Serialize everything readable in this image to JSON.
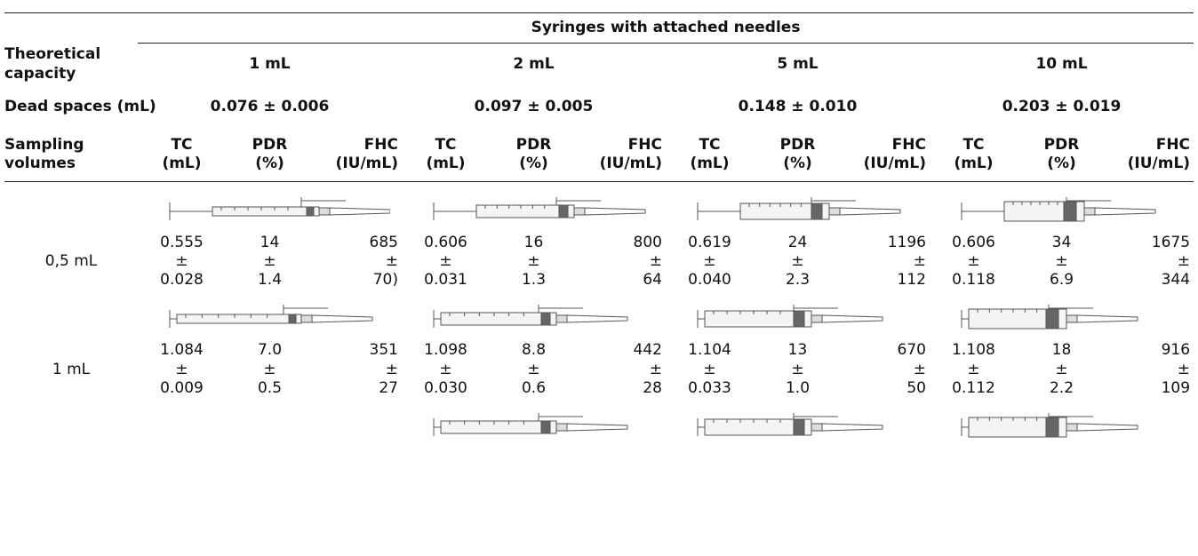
{
  "header": {
    "group": "Syringes with attached needles"
  },
  "capacity": {
    "label": "Theoretical capacity",
    "values": [
      "1 mL",
      "2 mL",
      "5 mL",
      "10 mL"
    ]
  },
  "dead_spaces": {
    "label": "Dead spaces (mL)",
    "values": [
      "0.076 ± 0.006",
      "0.097 ± 0.005",
      "0.148 ± 0.010",
      "0.203 ± 0.019"
    ]
  },
  "sampling": {
    "label": "Sampling volumes",
    "columns": [
      "TC (mL)",
      "PDR (%)",
      "FHC (IU/mL)"
    ]
  },
  "rows": [
    {
      "label": "0,5 mL",
      "cells": [
        "0.555 ± 0.028",
        "14 ± 1.4",
        "685 ± 70)",
        "0.606 ± 0.031",
        "16 ± 1.3",
        "800 ± 64",
        "0.619 ± 0.040",
        "24 ± 2.3",
        "1196 ± 112",
        "0.606 ± 0.118",
        "34 ± 6.9",
        "1675 ± 344"
      ]
    },
    {
      "label": "1 mL",
      "cells": [
        "1.084 ± 0.009",
        "7.0 ± 0.5",
        "351 ± 27",
        "1.098 ± 0.030",
        "8.8 ± 0.6",
        "442 ± 28",
        "1.104 ± 0.033",
        "13 ± 1.0",
        "670 ± 50",
        "1.108 ± 0.112",
        "18 ± 2.2",
        "916 ± 109"
      ]
    }
  ]
}
